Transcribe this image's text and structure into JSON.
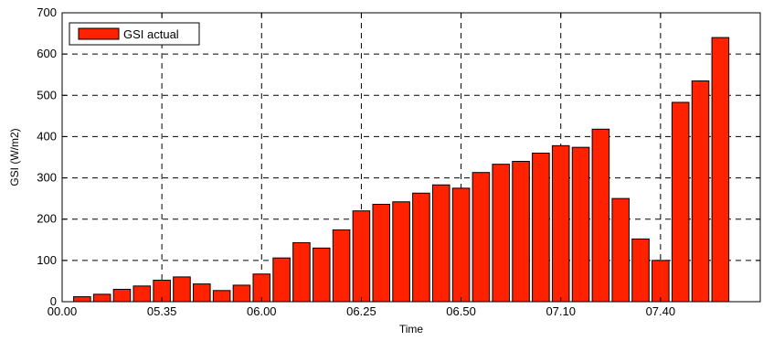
{
  "chart_data": {
    "type": "bar",
    "title": "",
    "xlabel": "Time",
    "ylabel": "GSI (W/m2)",
    "ylim": [
      0,
      700
    ],
    "yticks": [
      0,
      100,
      200,
      300,
      400,
      500,
      600,
      700
    ],
    "xlim": [
      0,
      35
    ],
    "xticks": [
      {
        "pos": 0,
        "label": "00.00"
      },
      {
        "pos": 5,
        "label": "05.35"
      },
      {
        "pos": 10,
        "label": "06.00"
      },
      {
        "pos": 15,
        "label": "06.25"
      },
      {
        "pos": 20,
        "label": "06.50"
      },
      {
        "pos": 25,
        "label": "07.10"
      },
      {
        "pos": 30,
        "label": "07.40"
      }
    ],
    "grid": true,
    "legend_position": "top-left",
    "series": [
      {
        "name": "GSI actual",
        "color": "#ff2200",
        "values": [
          12,
          18,
          30,
          38,
          52,
          60,
          43,
          27,
          40,
          67,
          106,
          143,
          130,
          174,
          220,
          236,
          242,
          263,
          283,
          275,
          313,
          333,
          340,
          360,
          378,
          374,
          418,
          250,
          152,
          100,
          483,
          535,
          640
        ]
      }
    ]
  }
}
